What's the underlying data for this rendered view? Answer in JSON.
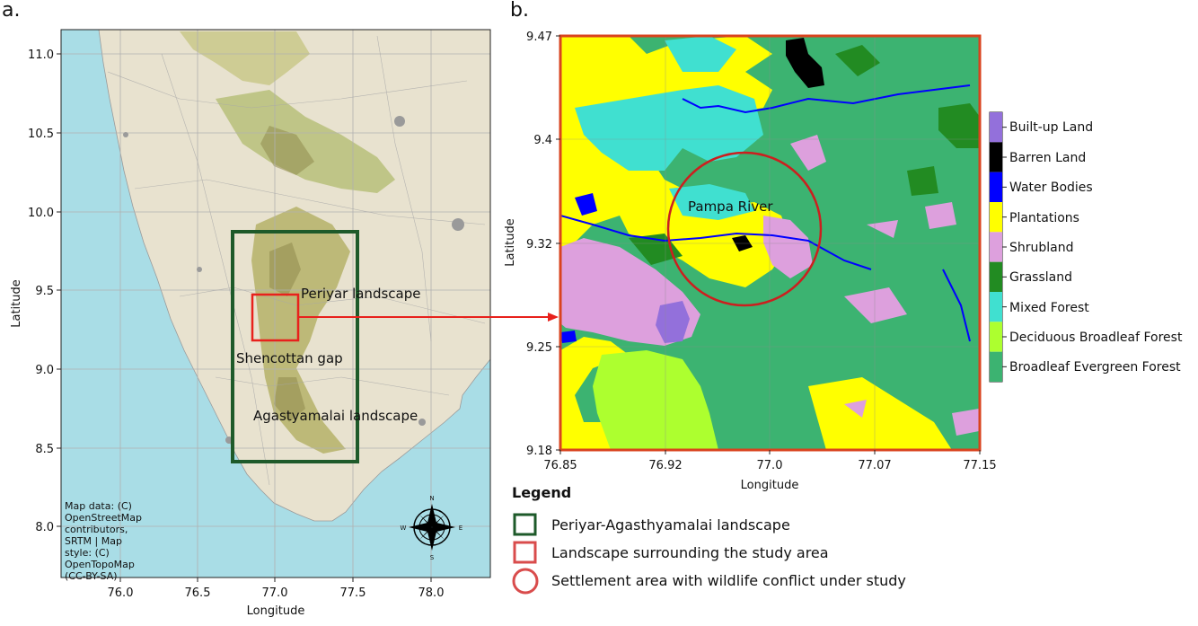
{
  "panel_a": {
    "label": "a.",
    "xlabel": "Longitude",
    "ylabel": "Latitude",
    "xticks": [
      "76.0",
      "76.5",
      "77.0",
      "77.5",
      "78.0"
    ],
    "yticks": [
      "11.0",
      "10.5",
      "10.0",
      "9.5",
      "9.0",
      "8.5",
      "8.0"
    ],
    "xlim": [
      75.6,
      78.4
    ],
    "ylim": [
      7.6,
      11.15
    ],
    "labels": {
      "periyar": "Periyar landscape",
      "shencottan": "Shencottan gap",
      "agastyamalai": "Agastyamalai landscape"
    },
    "attribution": [
      "Map data: (C)",
      "OpenStreetMap",
      "contributors,",
      "SRTM | Map",
      "style: (C)",
      "OpenTopoMap",
      "(CC-BY-SA)"
    ],
    "compass": {
      "n": "N",
      "s": "S",
      "e": "E",
      "w": "W"
    },
    "green_box": {
      "lon": [
        76.72,
        77.52
      ],
      "lat": [
        8.42,
        9.87
      ]
    },
    "red_box": {
      "lon": [
        76.85,
        77.15
      ],
      "lat": [
        9.18,
        9.47
      ]
    }
  },
  "panel_b": {
    "label": "b.",
    "xlabel": "Longitude",
    "ylabel": "Latitude",
    "xticks": [
      "76.85",
      "76.92",
      "77.0",
      "77.07",
      "77.15"
    ],
    "yticks": [
      "9.47",
      "9.4",
      "9.32",
      "9.25",
      "9.18"
    ],
    "xlim": [
      76.85,
      77.15
    ],
    "ylim": [
      9.18,
      9.47
    ],
    "river_label": "Pampa River",
    "circle": {
      "lon": 76.98,
      "lat": 9.335,
      "radius_deg": 0.05
    }
  },
  "landcover_legend": [
    {
      "label": "Built-up Land",
      "color": "#9370db"
    },
    {
      "label": "Barren Land",
      "color": "#000000"
    },
    {
      "label": "Water Bodies",
      "color": "#0000ff"
    },
    {
      "label": "Plantations",
      "color": "#ffff00"
    },
    {
      "label": "Shrubland",
      "color": "#dda0dd"
    },
    {
      "label": "Grassland",
      "color": "#228b22"
    },
    {
      "label": "Mixed Forest",
      "color": "#40e0d0"
    },
    {
      "label": "Deciduous Broadleaf Forest",
      "color": "#adff2f"
    },
    {
      "label": "Broadleaf Evergreen Forest",
      "color": "#3cb371"
    }
  ],
  "legend": {
    "title": "Legend",
    "items": [
      {
        "label": "Periyar-Agasthyamalai landscape",
        "shape": "square",
        "color": "#1e5a2a"
      },
      {
        "label": "Landscape surrounding the study area",
        "shape": "square",
        "color": "#d94c4c"
      },
      {
        "label": "Settlement area with wildlife conflict under study",
        "shape": "circle",
        "color": "#d94c4c"
      }
    ]
  }
}
